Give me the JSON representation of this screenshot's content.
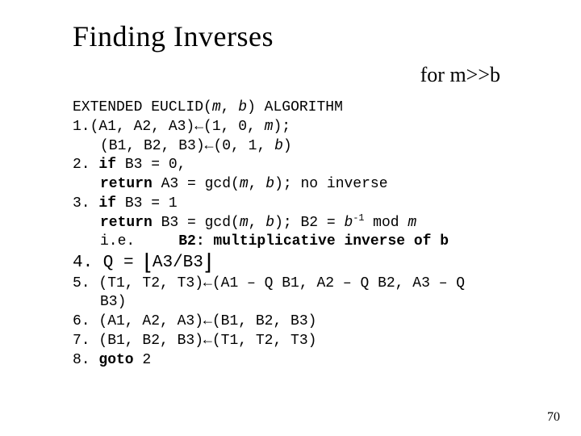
{
  "title": "Finding Inverses",
  "subtitle": "for m>>b",
  "algo": {
    "header_pre": "EXTENDED EUCLID(",
    "header_m": "m",
    "header_mid": ", ",
    "header_b": "b",
    "header_post": ") ALGORITHM",
    "l1_pre": "1.(A1, A2, A3)",
    "arrow1": "←",
    "l1_post_a": "(1, 0, ",
    "l1_m": "m",
    "l1_post_b": ");",
    "l1b_pre": "(B1, B2, B3)",
    "arrow1b": "←",
    "l1b_post_a": "(0, 1, ",
    "l1b_b": "b",
    "l1b_post_b": ")",
    "l2_pre": "2. ",
    "l2_if": "if",
    "l2_post": " B3 = 0,",
    "l2b_ret": "return",
    "l2b_mid": " A3 = gcd(",
    "l2b_m": "m",
    "l2b_mid2": ", ",
    "l2b_b": "b",
    "l2b_post": "); no inverse",
    "l3_pre": "3. ",
    "l3_if": "if",
    "l3_post": " B3 = 1",
    "l3b_ret": "return",
    "l3b_mid": " B3 = gcd(",
    "l3b_m": "m",
    "l3b_mid2": ", ",
    "l3b_b": "b",
    "l3b_mid3": "); B2 = ",
    "l3b_b2": "b",
    "l3b_exp": "-1",
    "l3b_mod": " mod ",
    "l3b_m2": "m",
    "l3c_pre": "i.e.     ",
    "l3c_bold": "B2: multiplicative inverse of b",
    "l4_pre": "4. Q = ",
    "l4_floor_l": "⌊",
    "l4_mid": "A3/B3",
    "l4_floor_r": "⌋",
    "l5_pre": "5. (T1, T2, T3)",
    "arrow5": "←",
    "l5_post": "(A1 – Q B1, A2 – Q B2, A3 – Q",
    "l5b": "B3)",
    "l6_pre": "6. (A1, A2, A3)",
    "arrow6": "←",
    "l6_post": "(B1, B2, B3)",
    "l7_pre": "7. (B1, B2, B3)",
    "arrow7": "←",
    "l7_post": "(T1, T2, T3)",
    "l8_pre": "8. ",
    "l8_goto": "goto",
    "l8_post": " 2"
  },
  "page_number": "70",
  "colors": {
    "background": "#ffffff",
    "text": "#000000"
  },
  "fonts": {
    "title_family": "Times New Roman",
    "title_size_pt": 28,
    "body_family": "Courier New",
    "body_size_pt": 14
  }
}
